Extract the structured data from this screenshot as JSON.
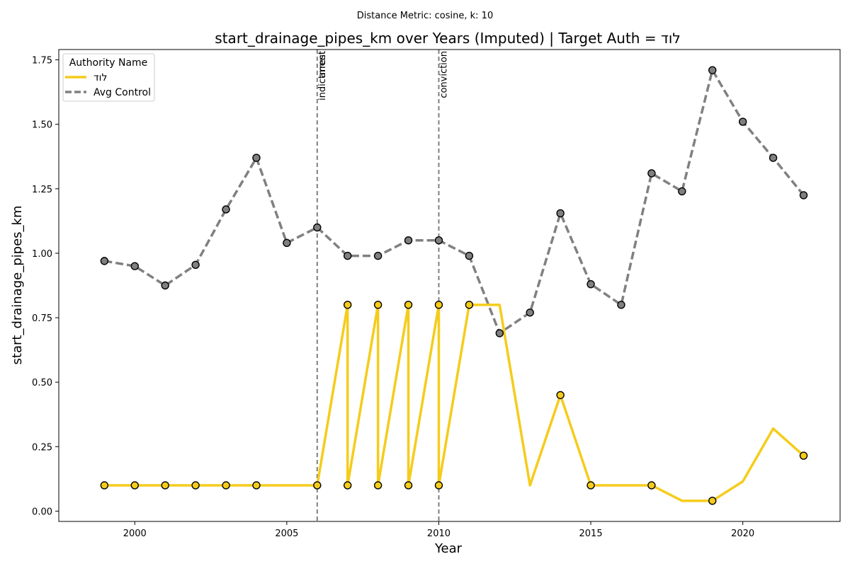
{
  "chart_data": {
    "type": "line",
    "suptitle": "Distance Metric: cosine, k: 10",
    "title": "start_drainage_pipes_km over Years (Imputed) | Target Auth = לוד",
    "xlabel": "Year",
    "ylabel": "start_drainage_pipes_km",
    "xlim": [
      1997.5,
      2023.2
    ],
    "ylim": [
      -0.04,
      1.79
    ],
    "x_ticks": [
      2000,
      2005,
      2010,
      2015,
      2020
    ],
    "x_tick_labels": [
      "2000",
      "2005",
      "2010",
      "2015",
      "2020"
    ],
    "y_ticks": [
      0.0,
      0.25,
      0.5,
      0.75,
      1.0,
      1.25,
      1.5,
      1.75
    ],
    "y_tick_labels": [
      "0.00",
      "0.25",
      "0.50",
      "0.75",
      "1.00",
      "1.25",
      "1.50",
      "1.75"
    ],
    "grid": false,
    "legend": {
      "title": "Authority Name",
      "position": "top-left",
      "entries": [
        "לוד",
        "Avg Control"
      ]
    },
    "series": [
      {
        "name": "לוד",
        "color": "#f5cc1b",
        "line_style": "solid",
        "marker_color": "#f5cc1b",
        "points": [
          [
            1999,
            0.1
          ],
          [
            2000,
            0.1
          ],
          [
            2001,
            0.1
          ],
          [
            2002,
            0.1
          ],
          [
            2003,
            0.1
          ],
          [
            2004,
            0.1
          ],
          [
            2005,
            0.1
          ],
          [
            2006,
            0.1
          ],
          [
            2007,
            0.8
          ],
          [
            2007,
            0.1
          ],
          [
            2008,
            0.8
          ],
          [
            2008,
            0.1
          ],
          [
            2009,
            0.8
          ],
          [
            2009,
            0.1
          ],
          [
            2010,
            0.8
          ],
          [
            2010,
            0.1
          ],
          [
            2011,
            0.8
          ],
          [
            2012,
            0.8
          ],
          [
            2013,
            0.1
          ],
          [
            2014,
            0.45
          ],
          [
            2015,
            0.1
          ],
          [
            2016,
            0.1
          ],
          [
            2017,
            0.1
          ],
          [
            2018,
            0.04
          ],
          [
            2019,
            0.04
          ],
          [
            2020,
            0.115
          ],
          [
            2021,
            0.32
          ],
          [
            2022,
            0.215
          ]
        ],
        "markers": [
          [
            1999,
            0.1
          ],
          [
            2000,
            0.1
          ],
          [
            2001,
            0.1
          ],
          [
            2002,
            0.1
          ],
          [
            2003,
            0.1
          ],
          [
            2004,
            0.1
          ],
          [
            2006,
            0.1
          ],
          [
            2007,
            0.8
          ],
          [
            2007,
            0.1
          ],
          [
            2008,
            0.8
          ],
          [
            2008,
            0.1
          ],
          [
            2009,
            0.8
          ],
          [
            2009,
            0.1
          ],
          [
            2010,
            0.8
          ],
          [
            2010,
            0.1
          ],
          [
            2011,
            0.8
          ],
          [
            2014,
            0.45
          ],
          [
            2015,
            0.1
          ],
          [
            2017,
            0.1
          ],
          [
            2019,
            0.04
          ],
          [
            2022,
            0.215
          ]
        ]
      },
      {
        "name": "Avg Control",
        "color": "#808080",
        "line_style": "dashed",
        "marker_color": "#808080",
        "points": [
          [
            1999,
            0.97
          ],
          [
            2000,
            0.95
          ],
          [
            2001,
            0.875
          ],
          [
            2002,
            0.955
          ],
          [
            2003,
            1.17
          ],
          [
            2004,
            1.37
          ],
          [
            2005,
            1.04
          ],
          [
            2006,
            1.1
          ],
          [
            2007,
            0.99
          ],
          [
            2008,
            0.99
          ],
          [
            2009,
            1.05
          ],
          [
            2010,
            1.05
          ],
          [
            2011,
            0.99
          ],
          [
            2012,
            0.69
          ],
          [
            2013,
            0.77
          ],
          [
            2014,
            1.155
          ],
          [
            2015,
            0.88
          ],
          [
            2016,
            0.8
          ],
          [
            2017,
            1.31
          ],
          [
            2018,
            1.24
          ],
          [
            2019,
            1.71
          ],
          [
            2020,
            1.51
          ],
          [
            2021,
            1.37
          ],
          [
            2022,
            1.225
          ]
        ]
      }
    ],
    "event_lines": [
      {
        "x": 2006,
        "labels": [
          "indictment",
          "arrest"
        ]
      },
      {
        "x": 2010,
        "labels": [
          "conviction"
        ]
      }
    ]
  }
}
